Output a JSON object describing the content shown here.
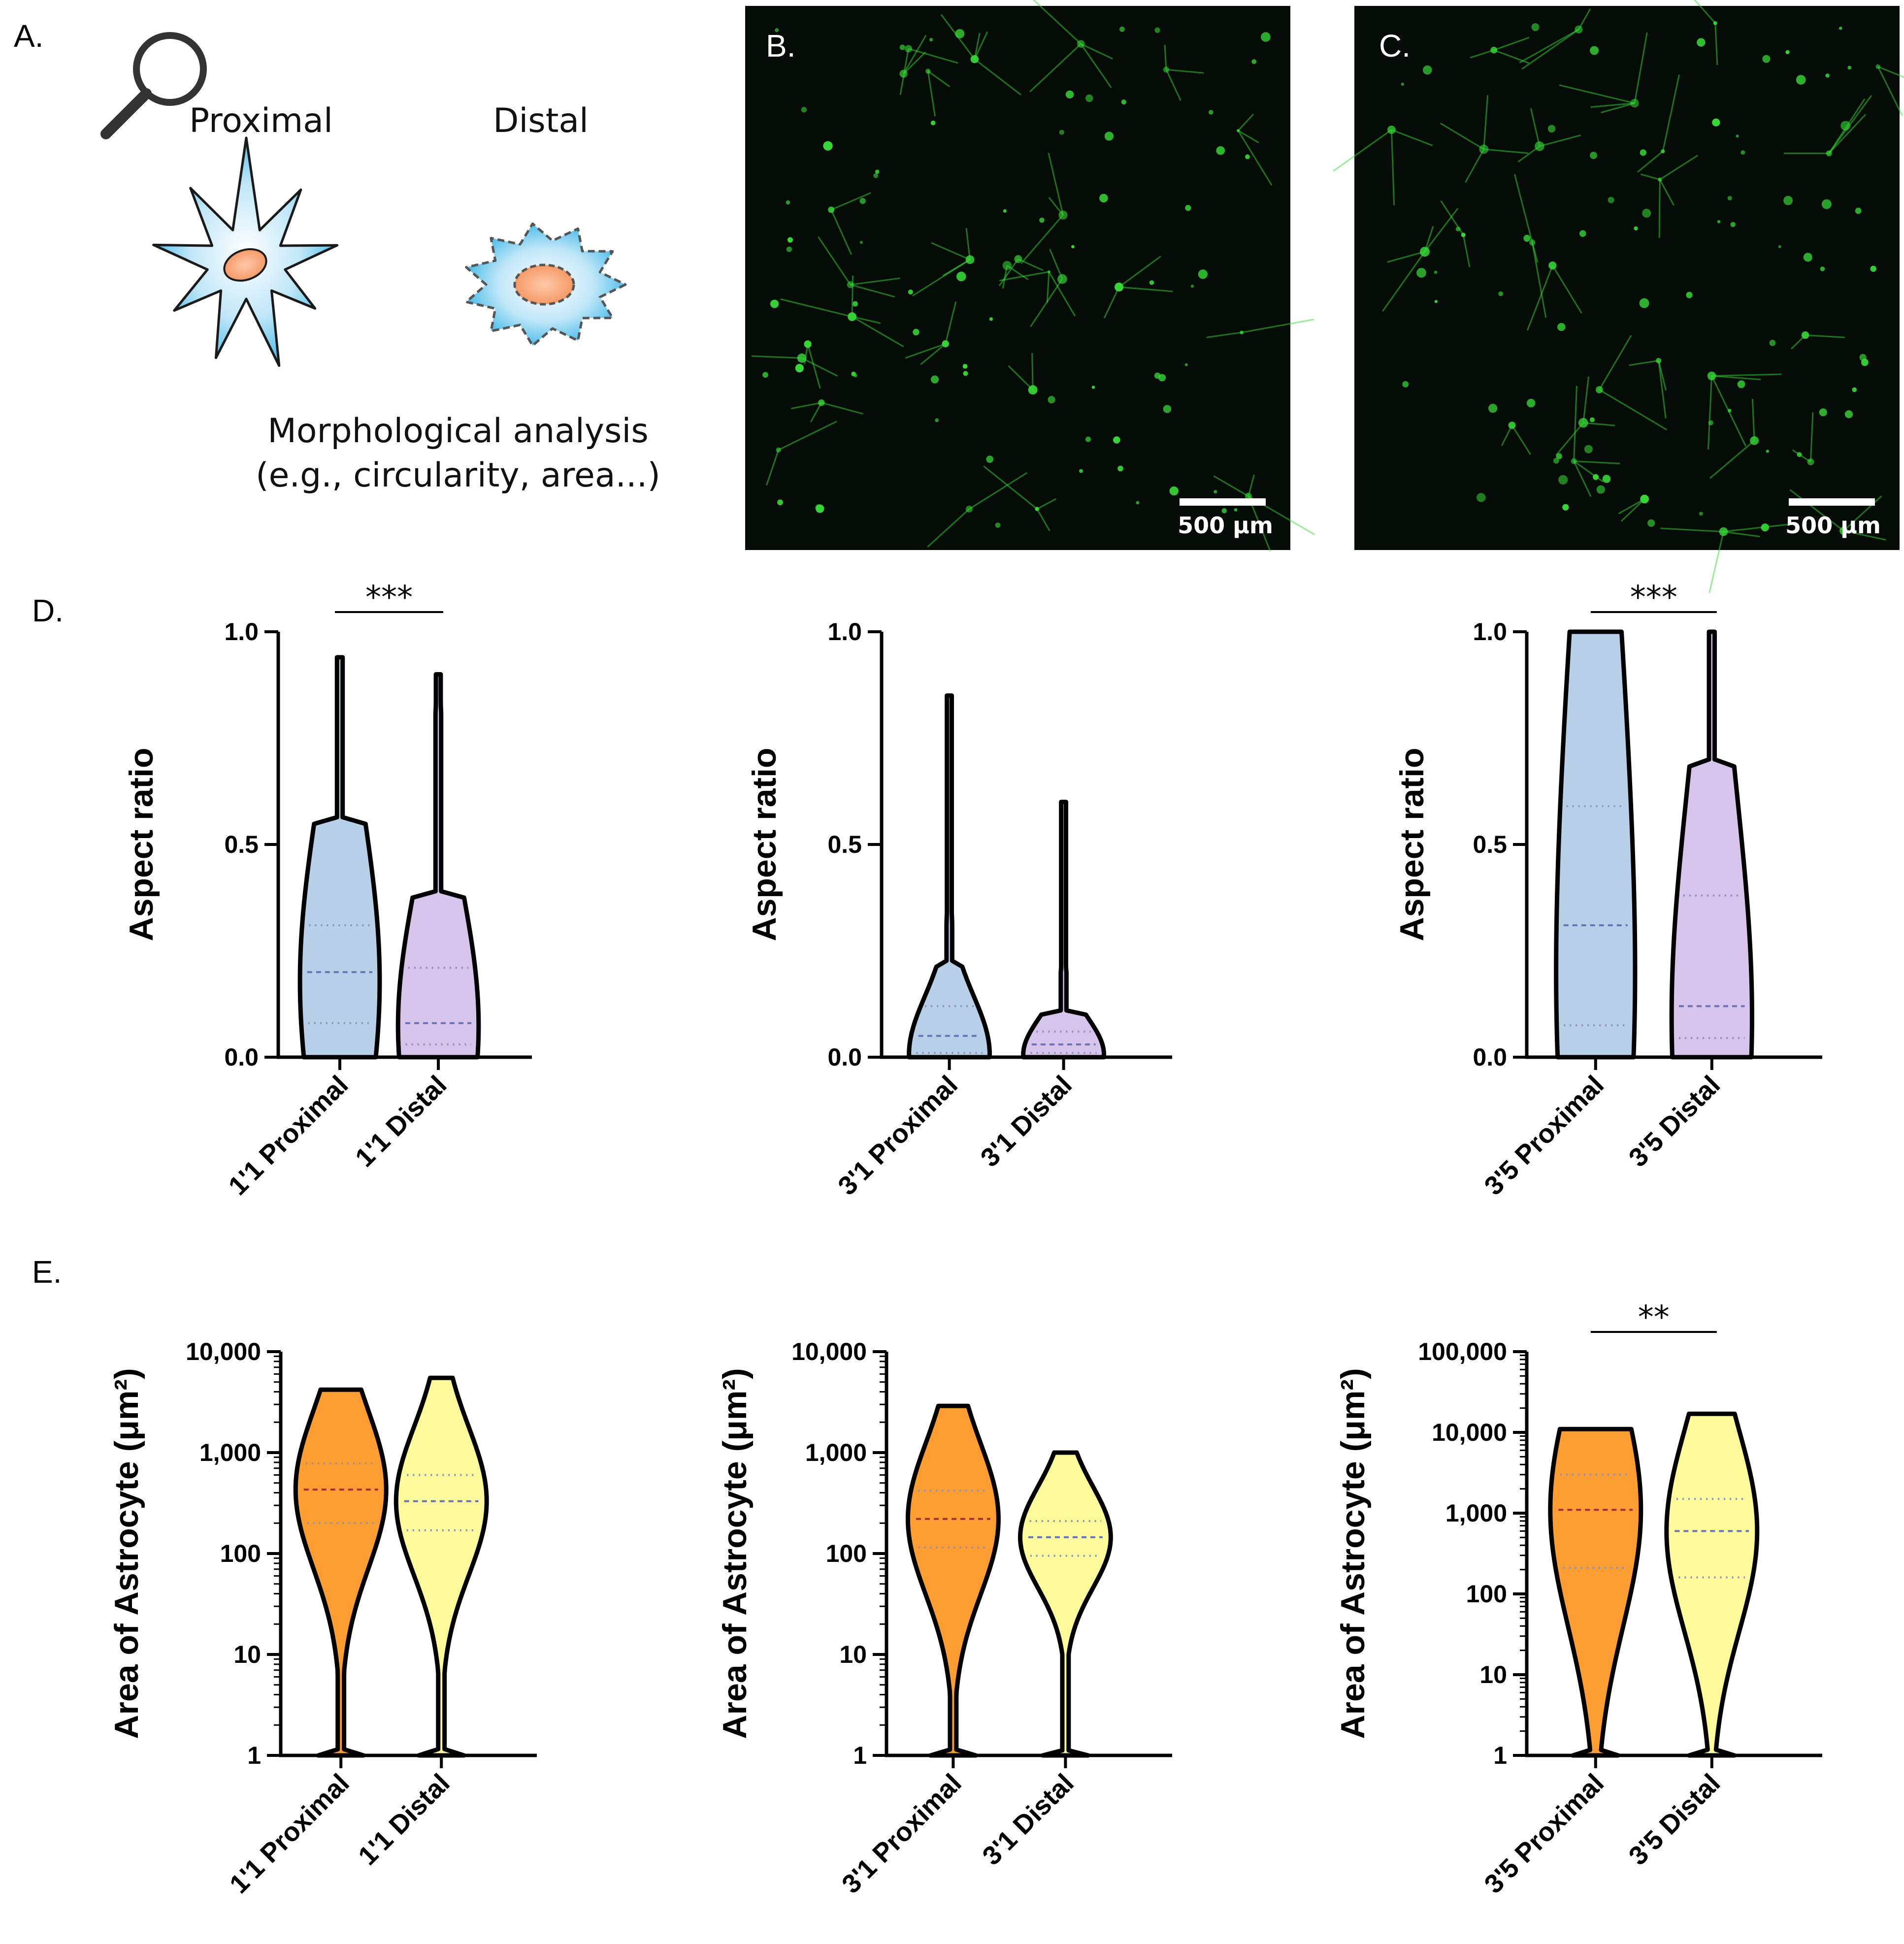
{
  "panel_labels": {
    "a": "A.",
    "b": "B.",
    "c": "C.",
    "d": "D.",
    "e": "E."
  },
  "schematic": {
    "proximal": "Proximal",
    "distal": "Distal",
    "analysis_line1": "Morphological analysis",
    "analysis_line2": "(e.g., circularity, area...)"
  },
  "micrographs": {
    "scale_b": "500 μm",
    "scale_c": "500 μm"
  },
  "colors": {
    "proximal_violin_aspect": "#b8cfe8",
    "distal_violin_aspect": "#d6c4ea",
    "proximal_violin_area": "#fd9d32",
    "distal_violin_area": "#fdfa9c",
    "fluorescence": "#38d838"
  },
  "chart_data": [
    {
      "type": "violin",
      "panel": "D",
      "ylabel": "Aspect ratio",
      "scale": "linear",
      "ylim": [
        0,
        1.0
      ],
      "yticks": [
        0.0,
        0.5,
        1.0
      ],
      "yticklabels": [
        "0.0",
        "0.5",
        "1.0"
      ],
      "categories": [
        "1'1 Proximal",
        "1'1 Distal"
      ],
      "significance": "***",
      "series": [
        {
          "name": "1'1 Proximal",
          "max": 0.94,
          "median": 0.2,
          "q1": 0.08,
          "q3": 0.31
        },
        {
          "name": "1'1 Distal",
          "max": 0.9,
          "median": 0.08,
          "q1": 0.03,
          "q3": 0.21
        }
      ]
    },
    {
      "type": "violin",
      "panel": "D",
      "ylabel": "Aspect ratio",
      "scale": "linear",
      "ylim": [
        0,
        1.0
      ],
      "yticks": [
        0.0,
        0.5,
        1.0
      ],
      "yticklabels": [
        "0.0",
        "0.5",
        "1.0"
      ],
      "categories": [
        "3'1 Proximal",
        "3'1 Distal"
      ],
      "significance": "",
      "series": [
        {
          "name": "3'1 Proximal",
          "max": 0.85,
          "median": 0.05,
          "q1": 0.01,
          "q3": 0.12
        },
        {
          "name": "3'1 Distal",
          "max": 0.6,
          "median": 0.03,
          "q1": 0.01,
          "q3": 0.06
        }
      ]
    },
    {
      "type": "violin",
      "panel": "D",
      "ylabel": "Aspect ratio",
      "scale": "linear",
      "ylim": [
        0,
        1.0
      ],
      "yticks": [
        0.0,
        0.5,
        1.0
      ],
      "yticklabels": [
        "0.0",
        "0.5",
        "1.0"
      ],
      "categories": [
        "3'5 Proximal",
        "3'5 Distal"
      ],
      "significance": "***",
      "series": [
        {
          "name": "3'5 Proximal",
          "max": 1.0,
          "median": 0.31,
          "q1": 0.075,
          "q3": 0.59
        },
        {
          "name": "3'5 Distal",
          "max": 1.0,
          "median": 0.12,
          "q1": 0.045,
          "q3": 0.38
        }
      ]
    },
    {
      "type": "violin",
      "panel": "E",
      "ylabel": "Area of  Astrocyte (μm²)",
      "scale": "log",
      "ylim": [
        1,
        10000
      ],
      "yticks": [
        1,
        10,
        100,
        1000,
        10000
      ],
      "yticklabels": [
        "1",
        "10",
        "100",
        "1,000",
        "10,000"
      ],
      "categories": [
        "1'1 Proximal",
        "1'1 Distal"
      ],
      "significance": "",
      "series": [
        {
          "name": "1'1 Proximal",
          "max": 4200,
          "median": 430,
          "q1": 200,
          "q3": 780
        },
        {
          "name": "1'1 Distal",
          "max": 5500,
          "median": 330,
          "q1": 170,
          "q3": 600
        }
      ]
    },
    {
      "type": "violin",
      "panel": "E",
      "ylabel": "Area of  Astrocyte (μm²)",
      "scale": "log",
      "ylim": [
        1,
        10000
      ],
      "yticks": [
        1,
        10,
        100,
        1000,
        10000
      ],
      "yticklabels": [
        "1",
        "10",
        "100",
        "1,000",
        "10,000"
      ],
      "categories": [
        "3'1 Proximal",
        "3'1 Distal"
      ],
      "significance": "",
      "series": [
        {
          "name": "3'1 Proximal",
          "max": 2900,
          "median": 220,
          "q1": 115,
          "q3": 420
        },
        {
          "name": "3'1 Distal",
          "max": 1000,
          "median": 145,
          "q1": 95,
          "q3": 210
        }
      ]
    },
    {
      "type": "violin",
      "panel": "E",
      "ylabel": "Area of  Astrocyte (μm²)",
      "scale": "log",
      "ylim": [
        1,
        100000
      ],
      "yticks": [
        1,
        10,
        100,
        1000,
        10000,
        100000
      ],
      "yticklabels": [
        "1",
        "10",
        "100",
        "1,000",
        "10,000",
        "100,000"
      ],
      "categories": [
        "3'5 Proximal",
        "3'5 Distal"
      ],
      "significance": "**",
      "series": [
        {
          "name": "3'5 Proximal",
          "max": 11000,
          "median": 1100,
          "q1": 210,
          "q3": 3000
        },
        {
          "name": "3'5 Distal",
          "max": 17000,
          "median": 600,
          "q1": 160,
          "q3": 1500
        }
      ]
    }
  ]
}
